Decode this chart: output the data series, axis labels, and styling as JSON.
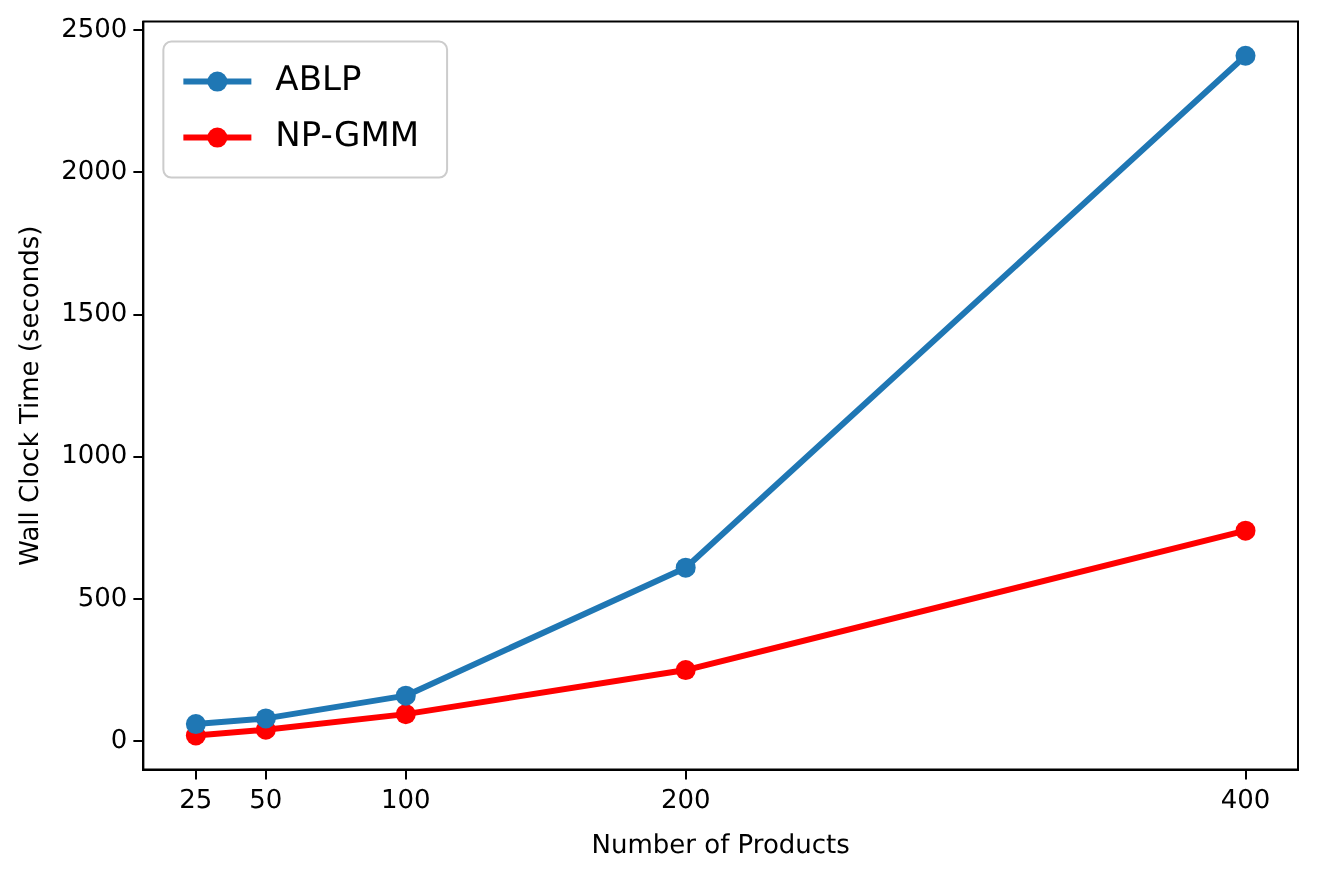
{
  "chart_data": {
    "type": "line",
    "xlabel": "Number of Products",
    "ylabel": "Wall Clock Time (seconds)",
    "x": [
      25,
      50,
      100,
      200,
      400
    ],
    "series": [
      {
        "name": "ABLP",
        "color": "#1f77b4",
        "values": [
          60,
          80,
          160,
          610,
          2410
        ]
      },
      {
        "name": "NP-GMM",
        "color": "#ff0000",
        "values": [
          20,
          40,
          95,
          250,
          740
        ]
      }
    ],
    "xlim": [
      6.25,
      418.75
    ],
    "xticks": [
      25,
      50,
      100,
      200,
      400
    ],
    "ylim": [
      -100,
      2530
    ],
    "yticks": [
      0,
      500,
      1000,
      1500,
      2000,
      2500
    ],
    "grid": false,
    "legend": "top left",
    "marker": "circle",
    "line_style": "solid"
  }
}
